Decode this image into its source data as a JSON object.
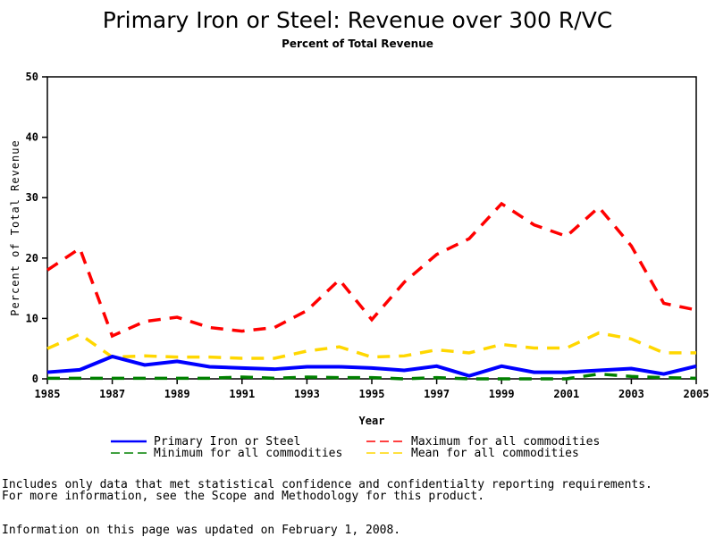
{
  "chart_data": {
    "type": "line",
    "title": "Primary Iron or Steel: Revenue over 300 R/VC",
    "subtitle": "Percent of Total Revenue",
    "xlabel": "Year",
    "ylabel": "Percent of Total Revenue",
    "xlim": [
      1985,
      2005
    ],
    "ylim": [
      0,
      50
    ],
    "xticks": [
      "1985",
      "1987",
      "1989",
      "1991",
      "1993",
      "1995",
      "1997",
      "1999",
      "2001",
      "2003",
      "2005"
    ],
    "yticks": [
      "0",
      "10",
      "20",
      "30",
      "40",
      "50"
    ],
    "grid": false,
    "legend_placement": "bottom",
    "x": [
      1985,
      1986,
      1987,
      1988,
      1989,
      1990,
      1991,
      1992,
      1993,
      1994,
      1995,
      1996,
      1997,
      1998,
      1999,
      2000,
      2001,
      2002,
      2003,
      2004,
      2005
    ],
    "series": [
      {
        "name": "Primary Iron or Steel",
        "color": "#0000ff",
        "style": "solid",
        "values": [
          1.1,
          1.5,
          3.7,
          2.3,
          2.9,
          2.0,
          1.8,
          1.6,
          2.0,
          2.0,
          1.8,
          1.4,
          2.1,
          0.5,
          2.1,
          1.1,
          1.1,
          1.4,
          1.7,
          0.8,
          2.1
        ]
      },
      {
        "name": "Maximum for all commodities",
        "color": "#ff0000",
        "style": "dashed",
        "values": [
          18.0,
          21.6,
          7.1,
          9.5,
          10.2,
          8.5,
          7.9,
          8.5,
          11.3,
          16.4,
          9.8,
          16.0,
          20.6,
          23.2,
          29.0,
          25.5,
          23.6,
          28.4,
          22.0,
          12.5,
          11.4
        ]
      },
      {
        "name": "Minimum for all commodities",
        "color": "#008000",
        "style": "dashed",
        "values": [
          0.1,
          0.1,
          0.1,
          0.1,
          0.1,
          0.1,
          0.3,
          0.1,
          0.3,
          0.2,
          0.2,
          0.0,
          0.2,
          0.0,
          0.0,
          0.0,
          0.0,
          0.8,
          0.4,
          0.2,
          0.1
        ]
      },
      {
        "name": "Mean for all commodities",
        "color": "#ffd700",
        "style": "dashed",
        "values": [
          5.0,
          7.4,
          3.6,
          3.8,
          3.6,
          3.6,
          3.4,
          3.4,
          4.6,
          5.3,
          3.6,
          3.8,
          4.8,
          4.3,
          5.7,
          5.1,
          5.1,
          7.6,
          6.6,
          4.3,
          4.3
        ]
      }
    ]
  },
  "notes": {
    "line1": "Includes only data that met statistical confidence and confidentialty reporting requirements.",
    "line2": "For more information, see the Scope and Methodology for this product.",
    "line3": "Information on this page was updated on February 1, 2008."
  }
}
